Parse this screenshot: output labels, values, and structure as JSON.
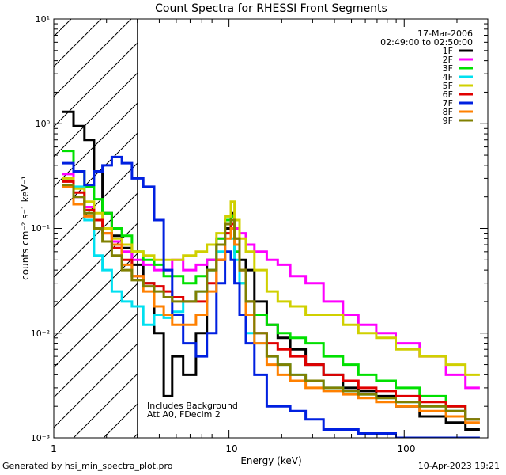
{
  "chart_data": {
    "type": "line",
    "title": "Count Spectra for RHESSI Front Segments",
    "xlabel": "Energy (keV)",
    "ylabel": "counts cm⁻² s⁻¹ keV⁻¹",
    "xscale": "log",
    "yscale": "log",
    "xlim": [
      1,
      300
    ],
    "ylim": [
      0.001,
      10
    ],
    "x_tick_labels": [
      "1",
      "10",
      "100"
    ],
    "y_tick_labels": [
      "10⁻³",
      "10⁻²",
      "10⁻¹",
      "10⁰",
      "10¹"
    ],
    "excluded_region_keV": [
      1,
      3
    ],
    "legend_header": [
      "17-Mar-2006",
      "02:49:00 to 02:50:00"
    ],
    "legend_position": "top-right",
    "annotations": [
      "Includes Background",
      "Att A0, FDecim 2"
    ],
    "series": [
      {
        "name": "1F",
        "color": "#000000",
        "x": [
          1.2,
          1.4,
          1.6,
          1.8,
          2.0,
          2.3,
          2.6,
          3.0,
          3.5,
          4.0,
          4.5,
          5.0,
          6,
          7,
          8,
          9,
          10,
          10.5,
          11,
          12,
          13,
          15,
          18,
          20,
          25,
          30,
          40,
          50,
          60,
          80,
          100,
          150,
          200,
          250
        ],
        "y": [
          1.3,
          0.95,
          0.7,
          0.35,
          0.14,
          0.085,
          0.065,
          0.045,
          0.03,
          0.01,
          0.0025,
          0.006,
          0.004,
          0.01,
          0.05,
          0.05,
          0.1,
          0.14,
          0.07,
          0.05,
          0.04,
          0.02,
          0.012,
          0.009,
          0.007,
          0.005,
          0.004,
          0.003,
          0.0028,
          0.0025,
          0.002,
          0.0016,
          0.0014,
          0.0012
        ]
      },
      {
        "name": "2F",
        "color": "#ff00ff",
        "x": [
          1.2,
          1.4,
          1.6,
          1.8,
          2.0,
          2.3,
          2.6,
          3.0,
          3.5,
          4.0,
          4.5,
          5.0,
          6,
          7,
          8,
          9,
          10,
          10.5,
          11,
          12,
          13,
          15,
          18,
          20,
          25,
          30,
          40,
          50,
          60,
          80,
          100,
          150,
          200,
          250
        ],
        "y": [
          0.33,
          0.2,
          0.16,
          0.12,
          0.1,
          0.075,
          0.06,
          0.05,
          0.045,
          0.04,
          0.04,
          0.05,
          0.04,
          0.045,
          0.05,
          0.08,
          0.12,
          0.13,
          0.1,
          0.09,
          0.07,
          0.06,
          0.05,
          0.045,
          0.035,
          0.03,
          0.02,
          0.015,
          0.012,
          0.01,
          0.008,
          0.006,
          0.004,
          0.003
        ]
      },
      {
        "name": "3F",
        "color": "#00e000",
        "x": [
          1.2,
          1.4,
          1.6,
          1.8,
          2.0,
          2.3,
          2.6,
          3.0,
          3.5,
          4.0,
          4.5,
          5.0,
          6,
          7,
          8,
          9,
          10,
          10.5,
          11,
          12,
          13,
          15,
          18,
          20,
          25,
          30,
          40,
          50,
          60,
          80,
          100,
          150,
          200,
          250
        ],
        "y": [
          0.55,
          0.35,
          0.25,
          0.19,
          0.14,
          0.1,
          0.085,
          0.06,
          0.05,
          0.045,
          0.035,
          0.035,
          0.03,
          0.035,
          0.04,
          0.08,
          0.12,
          0.13,
          0.06,
          0.03,
          0.02,
          0.015,
          0.012,
          0.01,
          0.009,
          0.008,
          0.006,
          0.005,
          0.004,
          0.0035,
          0.003,
          0.0025,
          0.002,
          0.0015
        ]
      },
      {
        "name": "4F",
        "color": "#00e0f0",
        "x": [
          1.2,
          1.4,
          1.6,
          1.8,
          2.0,
          2.3,
          2.6,
          3.0,
          3.5,
          4.0,
          4.5,
          5.0,
          6,
          7,
          8,
          9,
          10,
          10.5,
          11,
          12,
          13,
          15,
          18,
          20,
          25,
          30,
          40,
          50,
          60,
          80,
          100,
          150,
          200,
          250
        ],
        "y": [
          0.3,
          0.25,
          0.12,
          0.055,
          0.04,
          0.025,
          0.02,
          0.018,
          0.012,
          0.015,
          0.014,
          0.016,
          0.02,
          0.025,
          0.04,
          0.06,
          0.09,
          0.08,
          0.05,
          0.03,
          0.01,
          0.008,
          0.006,
          0.005,
          0.004,
          0.0035,
          0.003,
          0.0028,
          0.0026,
          0.0024,
          0.0022,
          0.002,
          0.0018,
          0.0015
        ]
      },
      {
        "name": "5F",
        "color": "#d0d000",
        "x": [
          1.2,
          1.4,
          1.6,
          1.8,
          2.0,
          2.3,
          2.6,
          3.0,
          3.5,
          4.0,
          4.5,
          5.0,
          6,
          7,
          8,
          9,
          10,
          10.5,
          11,
          12,
          13,
          15,
          18,
          20,
          25,
          30,
          40,
          50,
          60,
          80,
          100,
          150,
          200,
          250
        ],
        "y": [
          0.3,
          0.24,
          0.18,
          0.14,
          0.1,
          0.08,
          0.07,
          0.06,
          0.055,
          0.05,
          0.05,
          0.05,
          0.055,
          0.06,
          0.07,
          0.09,
          0.13,
          0.18,
          0.12,
          0.08,
          0.06,
          0.04,
          0.025,
          0.02,
          0.018,
          0.015,
          0.015,
          0.012,
          0.01,
          0.009,
          0.007,
          0.006,
          0.005,
          0.004
        ]
      },
      {
        "name": "6F",
        "color": "#e00000",
        "x": [
          1.2,
          1.4,
          1.6,
          1.8,
          2.0,
          2.3,
          2.6,
          3.0,
          3.5,
          4.0,
          4.5,
          5.0,
          6,
          7,
          8,
          9,
          10,
          10.5,
          11,
          12,
          13,
          15,
          18,
          20,
          25,
          30,
          40,
          50,
          60,
          80,
          100,
          150,
          200,
          250
        ],
        "y": [
          0.28,
          0.22,
          0.15,
          0.12,
          0.09,
          0.065,
          0.05,
          0.035,
          0.03,
          0.028,
          0.025,
          0.022,
          0.02,
          0.02,
          0.03,
          0.05,
          0.09,
          0.11,
          0.08,
          0.04,
          0.02,
          0.01,
          0.008,
          0.007,
          0.006,
          0.005,
          0.004,
          0.0035,
          0.003,
          0.0028,
          0.0025,
          0.0022,
          0.002,
          0.0015
        ]
      },
      {
        "name": "7F",
        "color": "#0020e0",
        "x": [
          1.2,
          1.4,
          1.6,
          1.8,
          2.0,
          2.3,
          2.6,
          3.0,
          3.5,
          4.0,
          4.5,
          5.0,
          6,
          7,
          8,
          9,
          10,
          10.5,
          11,
          12,
          13,
          15,
          18,
          20,
          25,
          30,
          40,
          50,
          60,
          80,
          100,
          150,
          200,
          250
        ],
        "y": [
          0.42,
          0.35,
          0.26,
          0.35,
          0.4,
          0.48,
          0.42,
          0.3,
          0.25,
          0.12,
          0.04,
          0.015,
          0.008,
          0.006,
          0.01,
          0.03,
          0.06,
          0.05,
          0.03,
          0.015,
          0.008,
          0.004,
          0.002,
          0.002,
          0.0018,
          0.0015,
          0.0012,
          0.0012,
          0.0011,
          0.0011,
          0.001,
          0.001,
          0.001,
          0.001
        ]
      },
      {
        "name": "8F",
        "color": "#ff8000",
        "x": [
          1.2,
          1.4,
          1.6,
          1.8,
          2.0,
          2.3,
          2.6,
          3.0,
          3.5,
          4.0,
          4.5,
          5.0,
          6,
          7,
          8,
          9,
          10,
          10.5,
          11,
          12,
          13,
          15,
          18,
          20,
          25,
          30,
          40,
          50,
          60,
          80,
          100,
          150,
          200,
          250
        ],
        "y": [
          0.25,
          0.17,
          0.13,
          0.1,
          0.09,
          0.07,
          0.045,
          0.035,
          0.025,
          0.018,
          0.015,
          0.012,
          0.012,
          0.015,
          0.025,
          0.05,
          0.08,
          0.1,
          0.07,
          0.04,
          0.015,
          0.008,
          0.005,
          0.004,
          0.0035,
          0.003,
          0.0028,
          0.0026,
          0.0024,
          0.0022,
          0.002,
          0.0018,
          0.0016,
          0.0014
        ]
      },
      {
        "name": "9F",
        "color": "#808000",
        "x": [
          1.2,
          1.4,
          1.6,
          1.8,
          2.0,
          2.3,
          2.6,
          3.0,
          3.5,
          4.0,
          4.5,
          5.0,
          6,
          7,
          8,
          9,
          10,
          10.5,
          11,
          12,
          13,
          15,
          18,
          20,
          25,
          30,
          40,
          50,
          60,
          80,
          100,
          150,
          200,
          250
        ],
        "y": [
          0.26,
          0.2,
          0.14,
          0.1,
          0.075,
          0.055,
          0.04,
          0.032,
          0.028,
          0.025,
          0.022,
          0.02,
          0.02,
          0.025,
          0.04,
          0.07,
          0.11,
          0.12,
          0.08,
          0.04,
          0.02,
          0.01,
          0.006,
          0.005,
          0.004,
          0.0035,
          0.003,
          0.0028,
          0.0026,
          0.0024,
          0.0022,
          0.002,
          0.0018,
          0.0015
        ]
      }
    ]
  },
  "footer": {
    "generated_by": "Generated by hsi_min_spectra_plot.pro",
    "timestamp": "10-Apr-2023 19:21"
  }
}
